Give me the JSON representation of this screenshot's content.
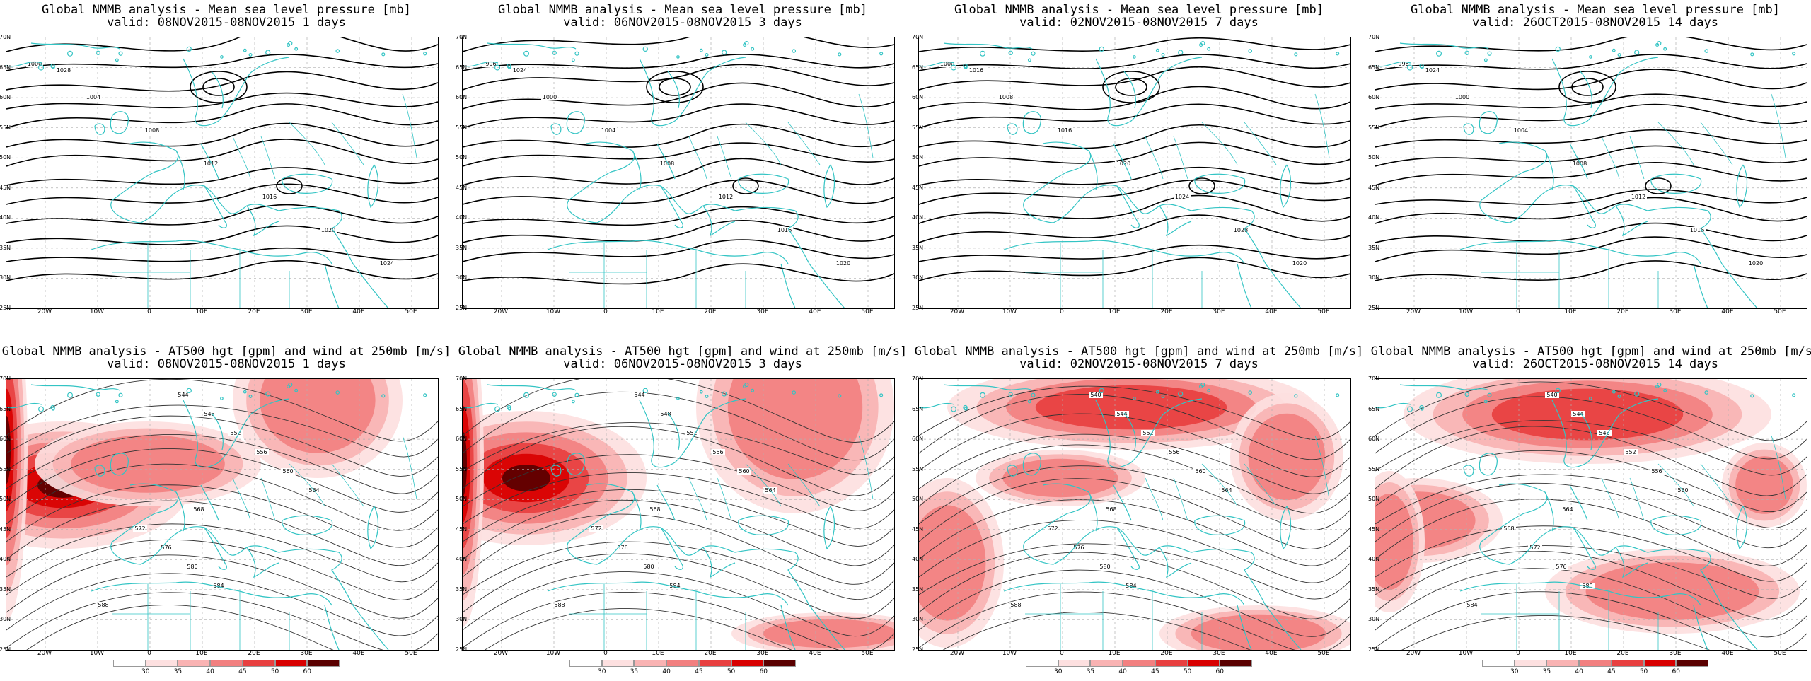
{
  "colors": {
    "coast": "#33c4c4",
    "contour": "#000000",
    "grid": "#b0b0b0",
    "wind": [
      "#fde0e0",
      "#f9b3b3",
      "#f28080",
      "#e84040",
      "#d80000",
      "#5a0000"
    ]
  },
  "latitude_labels": [
    "70N",
    "65N",
    "60N",
    "55N",
    "50N",
    "45N",
    "40N",
    "35N",
    "30N",
    "25N"
  ],
  "longitude_labels": [
    "20W",
    "10W",
    "0",
    "10E",
    "20E",
    "30E",
    "40E",
    "50E"
  ],
  "panels": [
    {
      "title_line1": "Global NMMB analysis - Mean sea level pressure [mb]",
      "title_line2": "valid: 08NOV2015-08NOV2015  1 days",
      "kind": "mslp",
      "labels": [
        "1000",
        "1004",
        "1008",
        "1012",
        "1016",
        "1020",
        "1024",
        "1028"
      ]
    },
    {
      "title_line1": "Global NMMB analysis - Mean sea level pressure [mb]",
      "title_line2": "valid: 06NOV2015-08NOV2015  3 days",
      "kind": "mslp",
      "labels": [
        "996",
        "1000",
        "1004",
        "1008",
        "1012",
        "1016",
        "1020",
        "1024"
      ]
    },
    {
      "title_line1": "Global NMMB analysis - Mean sea level pressure [mb]",
      "title_line2": "valid: 02NOV2015-08NOV2015  7 days",
      "kind": "mslp",
      "labels": [
        "1000",
        "1008",
        "1016",
        "1020",
        "1024",
        "1028",
        "1020",
        "1016"
      ]
    },
    {
      "title_line1": "Global NMMB analysis - Mean sea level pressure [mb]",
      "title_line2": "valid: 26OCT2015-08NOV2015  14 days",
      "kind": "mslp",
      "labels": [
        "996",
        "1000",
        "1004",
        "1008",
        "1012",
        "1016",
        "1020",
        "1024"
      ]
    },
    {
      "title_line1": "Global NMMB analysis - AT500 hgt [gpm] and wind at 250mb [m/s]",
      "title_line2": "valid: 08NOV2015-08NOV2015  1 days",
      "kind": "hgt",
      "labels": [
        "544",
        "548",
        "552",
        "556",
        "560",
        "564",
        "568",
        "572",
        "576",
        "580",
        "584",
        "588"
      ]
    },
    {
      "title_line1": "Global NMMB analysis - AT500 hgt [gpm] and wind at 250mb [m/s]",
      "title_line2": "valid: 06NOV2015-08NOV2015  3 days",
      "kind": "hgt",
      "labels": [
        "544",
        "548",
        "552",
        "556",
        "560",
        "564",
        "568",
        "572",
        "576",
        "580",
        "584",
        "588"
      ]
    },
    {
      "title_line1": "Global NMMB analysis - AT500 hgt [gpm] and wind at 250mb [m/s]",
      "title_line2": "valid: 02NOV2015-08NOV2015  7 days",
      "kind": "hgt",
      "labels": [
        "540",
        "544",
        "552",
        "556",
        "560",
        "564",
        "568",
        "572",
        "576",
        "580",
        "584",
        "588"
      ]
    },
    {
      "title_line1": "Global NMMB analysis - AT500 hgt [gpm] and wind at 250mb [m/s]",
      "title_line2": "valid: 26OCT2015-08NOV2015  14 days",
      "kind": "hgt",
      "labels": [
        "540",
        "544",
        "548",
        "552",
        "556",
        "560",
        "564",
        "568",
        "572",
        "576",
        "580",
        "584"
      ]
    }
  ],
  "colorbar_ticks": [
    "30",
    "35",
    "40",
    "45",
    "50",
    "60"
  ]
}
